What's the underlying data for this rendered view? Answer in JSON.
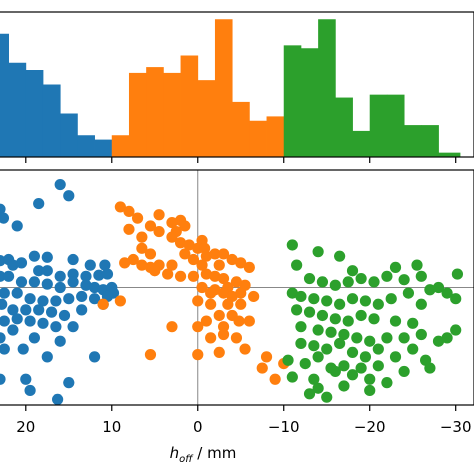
{
  "chart_data": [
    {
      "type": "bar",
      "panel": "histogram",
      "xlim": [
        23,
        -30.5
      ],
      "ylim": [
        0,
        10
      ],
      "series": [
        {
          "color": "#1f77b4",
          "bins": [
            [
              23,
              22
            ],
            [
              22,
              20
            ],
            [
              20,
              18
            ],
            [
              18,
              16
            ],
            [
              16,
              14
            ],
            [
              14,
              12
            ],
            [
              12,
              10
            ]
          ],
          "values": [
            8.5,
            6.5,
            6,
            5,
            3,
            1.5,
            1.2
          ]
        },
        {
          "color": "#ff7f0e",
          "bins": [
            [
              10,
              8
            ],
            [
              8,
              6
            ],
            [
              6,
              4
            ],
            [
              4,
              2
            ],
            [
              2,
              0
            ],
            [
              0,
              -2
            ],
            [
              -2,
              -4
            ],
            [
              -4,
              -6
            ],
            [
              -6,
              -8
            ],
            [
              -8,
              -10
            ]
          ],
          "values": [
            1.5,
            5.8,
            6.2,
            5.8,
            7.0,
            5.3,
            9.5,
            3.8,
            2.5,
            2.8
          ]
        },
        {
          "color": "#2ca02c",
          "bins": [
            [
              -10,
              -12
            ],
            [
              -12,
              -14
            ],
            [
              -14,
              -16
            ],
            [
              -16,
              -18
            ],
            [
              -18,
              -20
            ],
            [
              -20,
              -22
            ],
            [
              -22,
              -24
            ],
            [
              -24,
              -26
            ],
            [
              -26,
              -28
            ],
            [
              -28,
              -30.5
            ]
          ],
          "values": [
            7.7,
            7.5,
            9.5,
            4.1,
            1.8,
            4.3,
            4.3,
            2.2,
            2.2,
            0.3
          ]
        }
      ]
    },
    {
      "type": "scatter",
      "panel": "scatter",
      "xlabel_main": "h",
      "xlabel_sub": "off",
      "xlabel_unit": " / mm",
      "xlim": [
        23,
        -30.5
      ],
      "ylim": [
        -1.05,
        1.05
      ],
      "crosshair": [
        0,
        0
      ],
      "xticks": [
        20,
        10,
        0,
        -10,
        -20,
        -30
      ],
      "xtick_labels": [
        "20",
        "10",
        "0",
        "−10",
        "−20",
        "−30"
      ],
      "series": [
        {
          "color": "#1f77b4",
          "points": [
            [
              16,
              0.92
            ],
            [
              15,
              0.82
            ],
            [
              18.5,
              0.75
            ],
            [
              23,
              0.7
            ],
            [
              22.6,
              0.62
            ],
            [
              21,
              0.55
            ],
            [
              19,
              0.28
            ],
            [
              17.5,
              0.27
            ],
            [
              14.5,
              0.25
            ],
            [
              12.5,
              0.2
            ],
            [
              10.8,
              0.2
            ],
            [
              23,
              0.24
            ],
            [
              22,
              0.25
            ],
            [
              21.5,
              0.2
            ],
            [
              20.5,
              0.22
            ],
            [
              18.5,
              0.15
            ],
            [
              17.5,
              0.15
            ],
            [
              16,
              0.1
            ],
            [
              14.5,
              0.12
            ],
            [
              13,
              0.1
            ],
            [
              11.5,
              0.11
            ],
            [
              10.5,
              0.12
            ],
            [
              23,
              0.1
            ],
            [
              22,
              0.1
            ],
            [
              20.5,
              0.05
            ],
            [
              19,
              0.05
            ],
            [
              17.5,
              0.03
            ],
            [
              16,
              0.0
            ],
            [
              14.5,
              0.05
            ],
            [
              13,
              0.02
            ],
            [
              12,
              0.0
            ],
            [
              11,
              -0.02
            ],
            [
              10,
              0.0
            ],
            [
              9.8,
              -0.05
            ],
            [
              22.5,
              -0.05
            ],
            [
              21,
              -0.05
            ],
            [
              19.5,
              -0.1
            ],
            [
              18,
              -0.12
            ],
            [
              16.5,
              -0.12
            ],
            [
              15,
              -0.1
            ],
            [
              13.5,
              -0.08
            ],
            [
              12,
              -0.1
            ],
            [
              10.5,
              -0.08
            ],
            [
              22.8,
              -0.15
            ],
            [
              21.5,
              -0.2
            ],
            [
              20,
              -0.2
            ],
            [
              18.5,
              -0.2
            ],
            [
              17,
              -0.22
            ],
            [
              15.5,
              -0.25
            ],
            [
              13.5,
              -0.2
            ],
            [
              11,
              -0.15
            ],
            [
              22.5,
              -0.3
            ],
            [
              21,
              -0.28
            ],
            [
              19.5,
              -0.3
            ],
            [
              18,
              -0.32
            ],
            [
              16.5,
              -0.35
            ],
            [
              14.5,
              -0.35
            ],
            [
              21.5,
              -0.38
            ],
            [
              20.3,
              -0.55
            ],
            [
              19,
              -0.45
            ],
            [
              16,
              -0.48
            ],
            [
              23,
              -0.45
            ],
            [
              22.5,
              -0.55
            ],
            [
              17.5,
              -0.62
            ],
            [
              12,
              -0.62
            ],
            [
              23,
              -0.82
            ],
            [
              20,
              -0.82
            ],
            [
              15,
              -0.85
            ],
            [
              19.5,
              -0.92
            ],
            [
              16.3,
              -1.0
            ]
          ]
        },
        {
          "color": "#ff7f0e",
          "points": [
            [
              9,
              0.72
            ],
            [
              8,
              0.68
            ],
            [
              7,
              0.62
            ],
            [
              4.5,
              0.65
            ],
            [
              5.5,
              0.55
            ],
            [
              4.5,
              0.5
            ],
            [
              8,
              0.52
            ],
            [
              6.5,
              0.45
            ],
            [
              6.5,
              0.35
            ],
            [
              5.5,
              0.3
            ],
            [
              2,
              0.6
            ],
            [
              3,
              0.58
            ],
            [
              1.5,
              0.55
            ],
            [
              2.5,
              0.5
            ],
            [
              3,
              0.45
            ],
            [
              2,
              0.4
            ],
            [
              1,
              0.38
            ],
            [
              0,
              0.35
            ],
            [
              -0.5,
              0.42
            ],
            [
              -0.8,
              0.35
            ],
            [
              1.5,
              0.3
            ],
            [
              0.5,
              0.25
            ],
            [
              -1,
              0.28
            ],
            [
              -2,
              0.3
            ],
            [
              -3,
              0.3
            ],
            [
              -4,
              0.25
            ],
            [
              -5,
              0.22
            ],
            [
              -6,
              0.18
            ],
            [
              -2.5,
              0.2
            ],
            [
              -0.5,
              0.2
            ],
            [
              3,
              0.2
            ],
            [
              4.5,
              0.2
            ],
            [
              5.5,
              0.18
            ],
            [
              6.5,
              0.2
            ],
            [
              7.5,
              0.25
            ],
            [
              8.5,
              0.22
            ],
            [
              3.5,
              0.12
            ],
            [
              5,
              0.15
            ],
            [
              2,
              0.1
            ],
            [
              0.5,
              0.1
            ],
            [
              -1,
              0.12
            ],
            [
              -2,
              0.1
            ],
            [
              -3,
              0.08
            ],
            [
              -4.5,
              0.05
            ],
            [
              -5.5,
              0.02
            ],
            [
              -3.5,
              0.0
            ],
            [
              -2,
              -0.02
            ],
            [
              -0.5,
              0.0
            ],
            [
              -1.5,
              -0.05
            ],
            [
              -3,
              -0.05
            ],
            [
              -4,
              -0.08
            ],
            [
              -5,
              -0.05
            ],
            [
              -6.5,
              -0.08
            ],
            [
              -5,
              -0.15
            ],
            [
              -3.5,
              -0.15
            ],
            [
              -1.5,
              -0.15
            ],
            [
              0,
              -0.12
            ],
            [
              -2.5,
              -0.25
            ],
            [
              -4,
              -0.25
            ],
            [
              -4.8,
              -0.3
            ],
            [
              -6,
              -0.3
            ],
            [
              -1,
              -0.3
            ],
            [
              0,
              -0.35
            ],
            [
              -3,
              -0.35
            ],
            [
              -3,
              -0.42
            ],
            [
              -4.5,
              -0.45
            ],
            [
              -1.5,
              -0.45
            ],
            [
              -2.5,
              -0.58
            ],
            [
              -5.5,
              -0.55
            ],
            [
              -8,
              -0.62
            ],
            [
              -7.5,
              -0.72
            ],
            [
              -9,
              -0.82
            ],
            [
              0,
              -0.6
            ],
            [
              3,
              -0.35
            ],
            [
              5.5,
              -0.6
            ],
            [
              9,
              -0.12
            ],
            [
              11,
              -0.15
            ],
            [
              -10,
              -0.68
            ]
          ]
        },
        {
          "color": "#2ca02c",
          "points": [
            [
              -11,
              0.38
            ],
            [
              -14,
              0.32
            ],
            [
              -16.5,
              0.28
            ],
            [
              -18,
              0.15
            ],
            [
              -22,
              0.1
            ],
            [
              -26,
              0.1
            ],
            [
              -25.5,
              0.2
            ],
            [
              -23,
              0.18
            ],
            [
              -24,
              0.07
            ],
            [
              -11.5,
              0.2
            ],
            [
              -13,
              0.08
            ],
            [
              -14.5,
              0.05
            ],
            [
              -16,
              0.02
            ],
            [
              -17.5,
              0.05
            ],
            [
              -19,
              0.08
            ],
            [
              -20.5,
              0.05
            ],
            [
              -11,
              -0.05
            ],
            [
              -12,
              -0.08
            ],
            [
              -13.5,
              -0.1
            ],
            [
              -15,
              -0.12
            ],
            [
              -16.5,
              -0.15
            ],
            [
              -18,
              -0.1
            ],
            [
              -19.5,
              -0.12
            ],
            [
              -21,
              -0.15
            ],
            [
              -22.5,
              -0.1
            ],
            [
              -24.5,
              -0.05
            ],
            [
              -27,
              -0.02
            ],
            [
              -29,
              -0.05
            ],
            [
              -28,
              0.0
            ],
            [
              -30,
              -0.1
            ],
            [
              -26,
              -0.15
            ],
            [
              -11.5,
              -0.2
            ],
            [
              -13,
              -0.22
            ],
            [
              -14.5,
              -0.25
            ],
            [
              -16,
              -0.28
            ],
            [
              -17.5,
              -0.3
            ],
            [
              -19,
              -0.25
            ],
            [
              -20.5,
              -0.28
            ],
            [
              -23,
              -0.3
            ],
            [
              -25,
              -0.32
            ],
            [
              -12,
              -0.35
            ],
            [
              -14,
              -0.38
            ],
            [
              -15.5,
              -0.4
            ],
            [
              -17,
              -0.42
            ],
            [
              -18.5,
              -0.45
            ],
            [
              -20,
              -0.48
            ],
            [
              -22,
              -0.45
            ],
            [
              -24,
              -0.45
            ],
            [
              -26,
              -0.42
            ],
            [
              -28,
              -0.48
            ],
            [
              -30,
              -0.38
            ],
            [
              -29,
              -0.45
            ],
            [
              -12,
              -0.5
            ],
            [
              -13.5,
              -0.52
            ],
            [
              -15,
              -0.55
            ],
            [
              -16.5,
              -0.5
            ],
            [
              -18,
              -0.58
            ],
            [
              -19.5,
              -0.62
            ],
            [
              -21,
              -0.55
            ],
            [
              -23,
              -0.62
            ],
            [
              -25,
              -0.55
            ],
            [
              -26.5,
              -0.65
            ],
            [
              -10.5,
              -0.65
            ],
            [
              -12.5,
              -0.68
            ],
            [
              -14,
              -0.62
            ],
            [
              -15.5,
              -0.72
            ],
            [
              -17,
              -0.7
            ],
            [
              -19,
              -0.72
            ],
            [
              -21,
              -0.7
            ],
            [
              -24,
              -0.75
            ],
            [
              -27,
              -0.72
            ],
            [
              -11,
              -0.8
            ],
            [
              -13.5,
              -0.82
            ],
            [
              -16,
              -0.75
            ],
            [
              -18,
              -0.78
            ],
            [
              -20,
              -0.82
            ],
            [
              -22,
              -0.85
            ],
            [
              -14,
              -0.9
            ],
            [
              -17,
              -0.88
            ],
            [
              -20,
              -0.92
            ],
            [
              -13,
              -0.95
            ],
            [
              -15,
              -0.98
            ],
            [
              -30.2,
              0.12
            ]
          ]
        }
      ]
    }
  ]
}
